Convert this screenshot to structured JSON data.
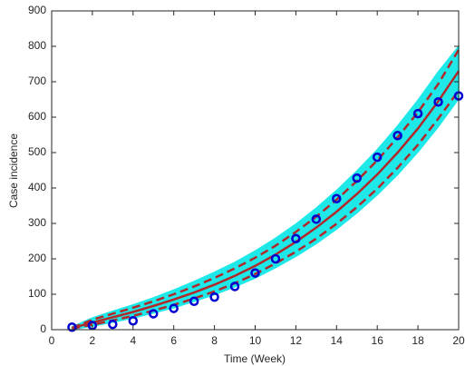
{
  "chart_data": {
    "type": "line",
    "x_label": "Time (Week)",
    "y_label": "Case incidence",
    "x": [
      1,
      2,
      3,
      4,
      5,
      6,
      7,
      8,
      9,
      10,
      11,
      12,
      13,
      14,
      15,
      16,
      17,
      18,
      19,
      20
    ],
    "band": {
      "color": "#1ee8e8",
      "upper": [
        8,
        33,
        52,
        70,
        90,
        112,
        136,
        162,
        190,
        222,
        258,
        298,
        343,
        393,
        448,
        508,
        575,
        648,
        728,
        800
      ],
      "lower": [
        1,
        10,
        21,
        33,
        47,
        62,
        80,
        99,
        121,
        146,
        175,
        207,
        243,
        284,
        330,
        381,
        438,
        502,
        573,
        652
      ]
    },
    "series": [
      {
        "color": "#b2292b",
        "style": "solid",
        "values": [
          5,
          20,
          35,
          50,
          67,
          85,
          105,
          127,
          152,
          180,
          212,
          248,
          288,
          333,
          383,
          438,
          500,
          568,
          645,
          730
        ]
      },
      {
        "color": "#b2292b",
        "style": "dashed",
        "values": [
          5,
          28,
          45,
          62,
          80,
          100,
          122,
          146,
          173,
          203,
          237,
          276,
          319,
          367,
          420,
          478,
          543,
          614,
          694,
          790
        ]
      },
      {
        "color": "#b2292b",
        "style": "dashed",
        "values": [
          3,
          14,
          26,
          39,
          54,
          70,
          88,
          108,
          131,
          157,
          187,
          220,
          257,
          299,
          346,
          398,
          457,
          522,
          596,
          675
        ]
      },
      {
        "color": "#0000d0",
        "style": "markers",
        "values": [
          7,
          12,
          15,
          25,
          45,
          60,
          80,
          92,
          122,
          160,
          200,
          257,
          312,
          370,
          428,
          487,
          548,
          610,
          643,
          660
        ]
      }
    ],
    "xlim": [
      0,
      20
    ],
    "xticks": [
      0,
      2,
      4,
      6,
      8,
      10,
      12,
      14,
      16,
      18,
      20
    ],
    "ylim": [
      0,
      900
    ],
    "yticks": [
      0,
      100,
      200,
      300,
      400,
      500,
      600,
      700,
      800,
      900
    ]
  }
}
